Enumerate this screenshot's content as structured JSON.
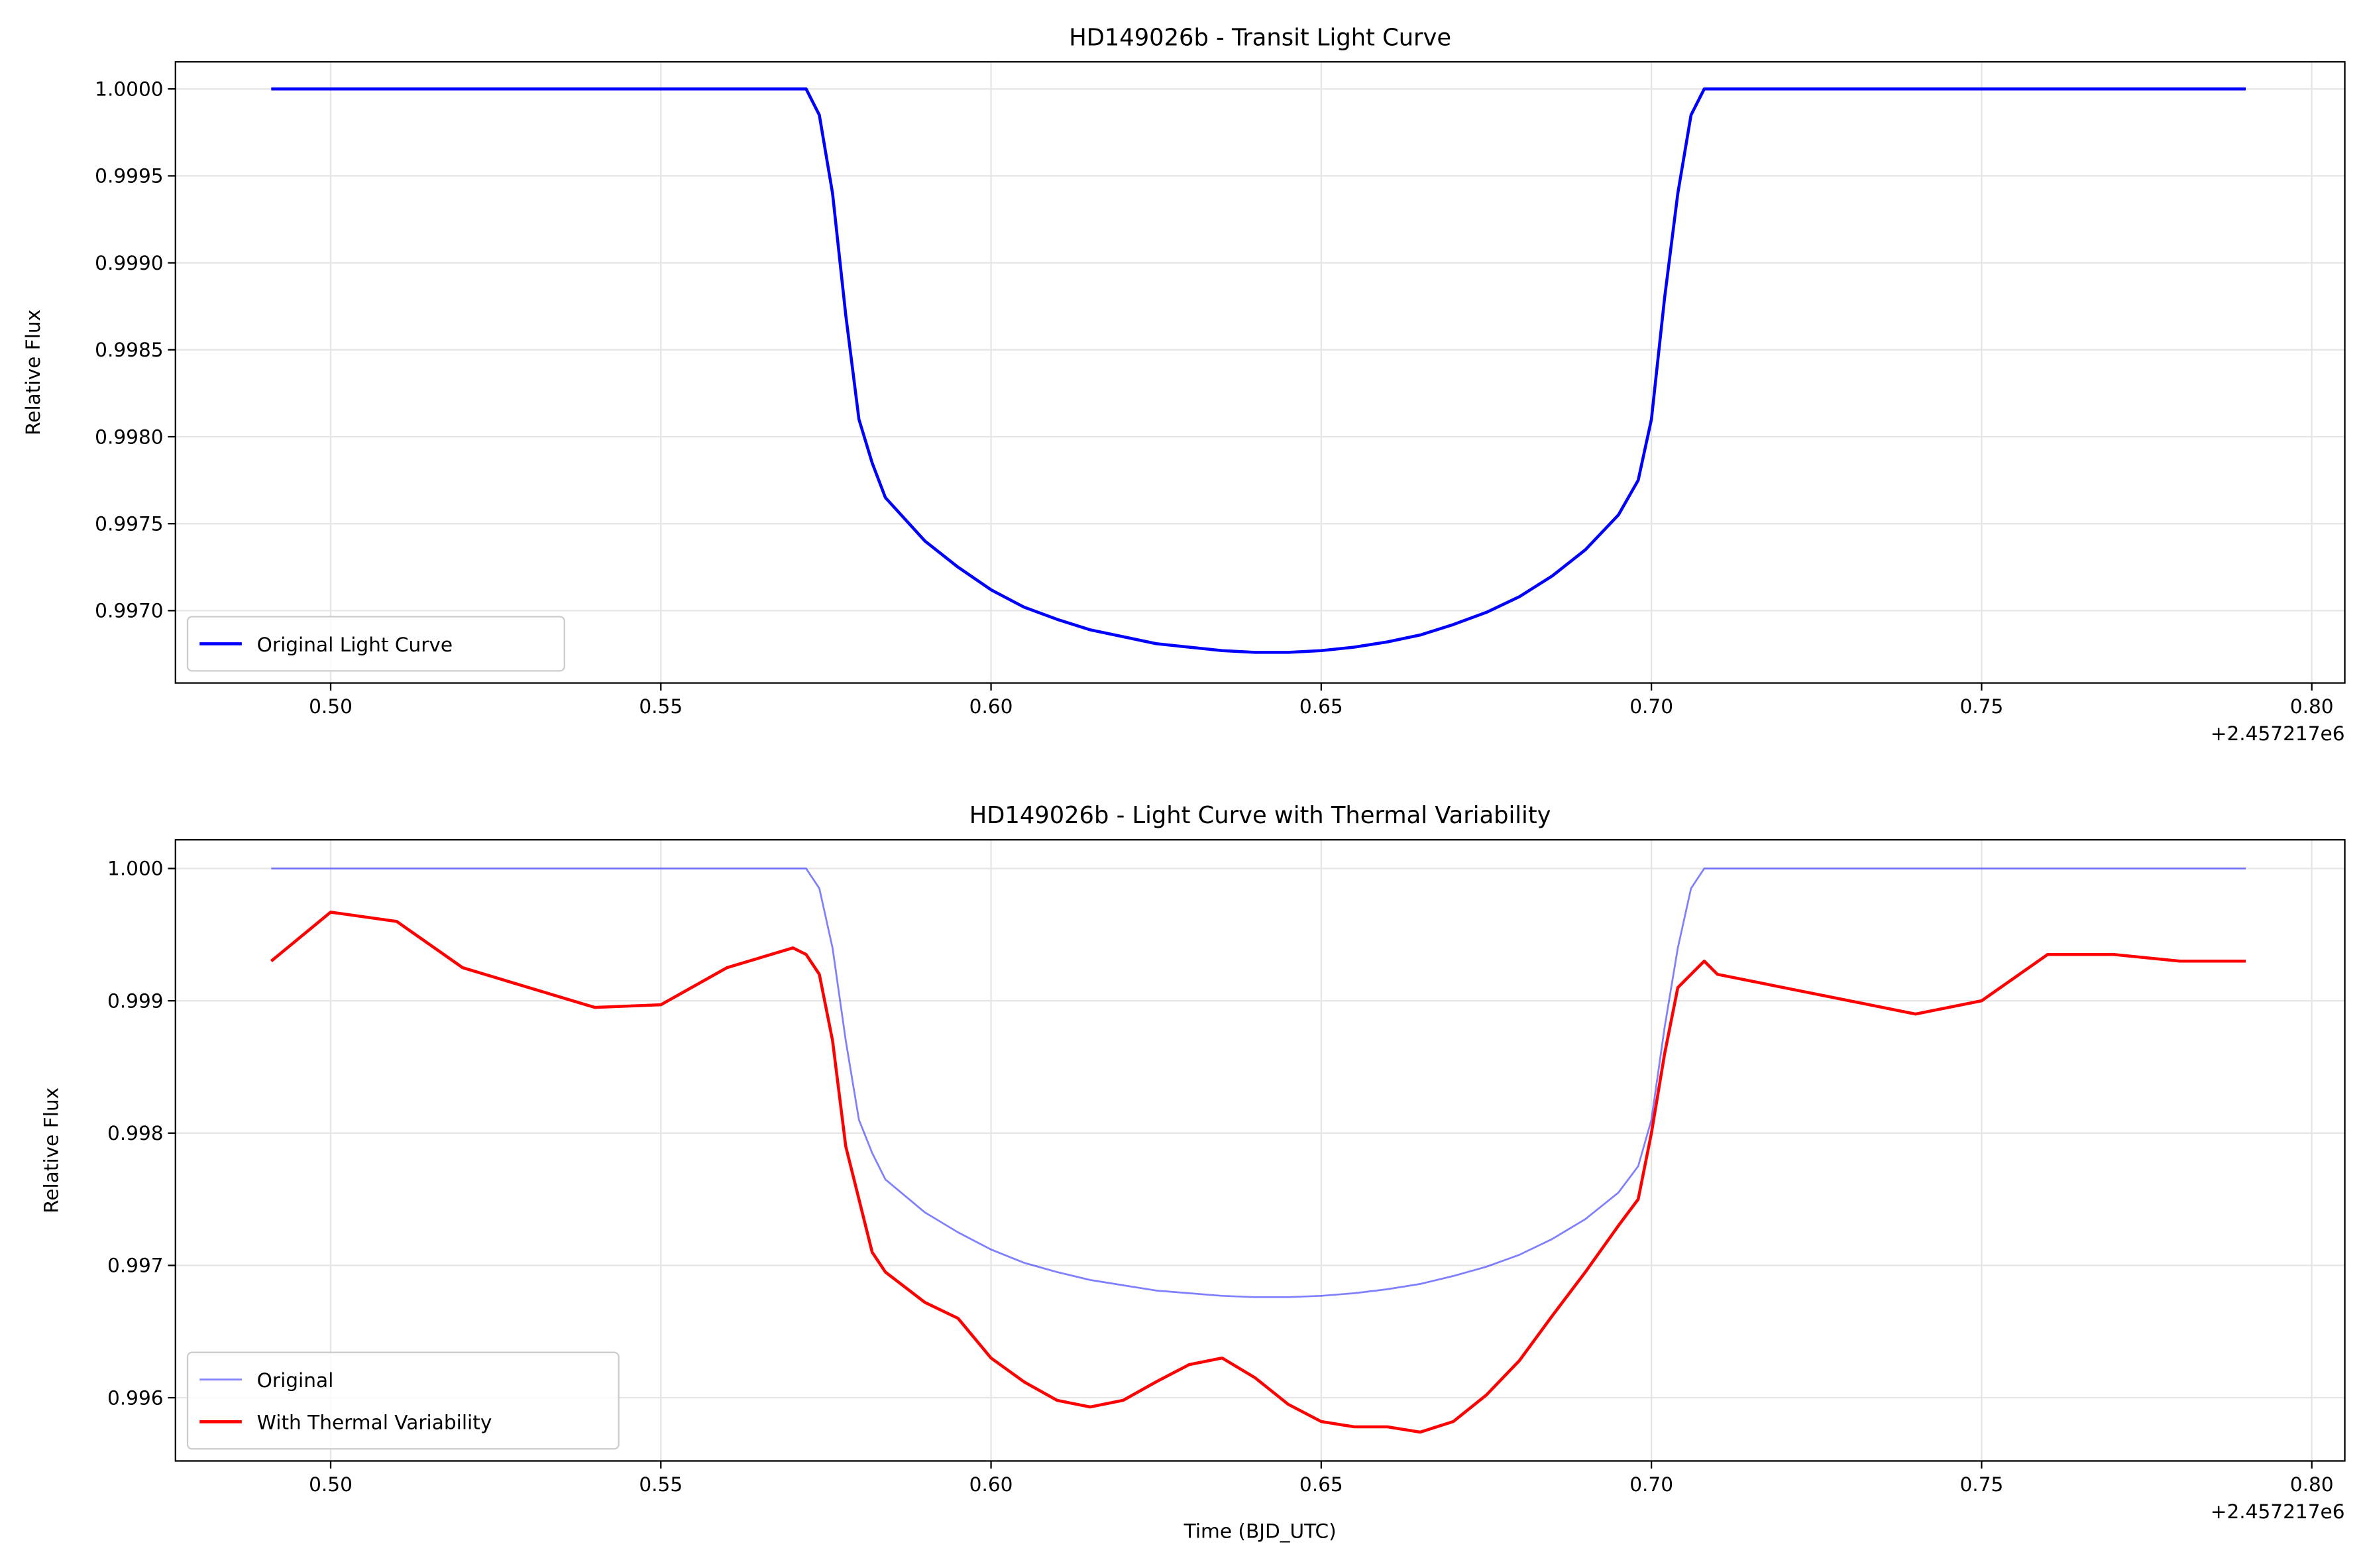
{
  "chart_data": [
    {
      "type": "line",
      "title": "HD149026b - Transit Light Curve",
      "y_label": "Relative Flux",
      "x_offset_label": "+2.457217e6",
      "x": [
        0.491,
        0.5,
        0.51,
        0.52,
        0.53,
        0.54,
        0.55,
        0.56,
        0.57,
        0.572,
        0.574,
        0.576,
        0.578,
        0.58,
        0.582,
        0.584,
        0.59,
        0.595,
        0.6,
        0.605,
        0.61,
        0.615,
        0.62,
        0.625,
        0.63,
        0.635,
        0.64,
        0.645,
        0.65,
        0.655,
        0.66,
        0.665,
        0.67,
        0.675,
        0.68,
        0.685,
        0.69,
        0.695,
        0.698,
        0.7,
        0.702,
        0.704,
        0.706,
        0.708,
        0.71,
        0.72,
        0.73,
        0.74,
        0.75,
        0.76,
        0.77,
        0.78,
        0.79
      ],
      "series": [
        {
          "name": "Original Light Curve",
          "color": "#0000ff",
          "opacity": 1,
          "width": 2,
          "values": [
            1,
            1,
            1,
            1,
            1,
            1,
            1,
            1,
            1,
            1,
            0.99985,
            0.9994,
            0.9987,
            0.9981,
            0.99785,
            0.99765,
            0.9974,
            0.99725,
            0.99712,
            0.99702,
            0.99695,
            0.99689,
            0.99685,
            0.99681,
            0.99679,
            0.99677,
            0.99676,
            0.99676,
            0.99677,
            0.99679,
            0.99682,
            0.99686,
            0.99692,
            0.99699,
            0.99708,
            0.9972,
            0.99735,
            0.99755,
            0.99775,
            0.9981,
            0.9988,
            0.9994,
            0.99985,
            1,
            1,
            1,
            1,
            1,
            1,
            1,
            1,
            1,
            1
          ]
        }
      ],
      "xlim": [
        0.4765,
        0.805
      ],
      "ylim": [
        0.996584,
        1.000156
      ],
      "xticks": [
        {
          "value": 0.5,
          "label": "0.50"
        },
        {
          "value": 0.55,
          "label": "0.55"
        },
        {
          "value": 0.6,
          "label": "0.60"
        },
        {
          "value": 0.65,
          "label": "0.65"
        },
        {
          "value": 0.7,
          "label": "0.70"
        },
        {
          "value": 0.75,
          "label": "0.75"
        },
        {
          "value": 0.8,
          "label": "0.80"
        }
      ],
      "yticks": [
        {
          "value": 0.997,
          "label": "0.9970"
        },
        {
          "value": 0.9975,
          "label": "0.9975"
        },
        {
          "value": 0.998,
          "label": "0.9980"
        },
        {
          "value": 0.9985,
          "label": "0.9985"
        },
        {
          "value": 0.999,
          "label": "0.9990"
        },
        {
          "value": 0.9995,
          "label": "0.9995"
        },
        {
          "value": 1,
          "label": "1.0000"
        }
      ],
      "grid": true,
      "legend": "lower left"
    },
    {
      "type": "line",
      "title": "HD149026b - Light Curve with Thermal Variability",
      "x_label": "Time (BJD_UTC)",
      "y_label": "Relative Flux",
      "x_offset_label": "+2.457217e6",
      "x": [
        0.491,
        0.5,
        0.51,
        0.52,
        0.53,
        0.54,
        0.55,
        0.56,
        0.57,
        0.572,
        0.574,
        0.576,
        0.578,
        0.58,
        0.582,
        0.584,
        0.59,
        0.595,
        0.6,
        0.605,
        0.61,
        0.615,
        0.62,
        0.625,
        0.63,
        0.635,
        0.64,
        0.645,
        0.65,
        0.655,
        0.66,
        0.665,
        0.67,
        0.675,
        0.68,
        0.685,
        0.69,
        0.695,
        0.698,
        0.7,
        0.702,
        0.704,
        0.706,
        0.708,
        0.71,
        0.72,
        0.73,
        0.74,
        0.75,
        0.76,
        0.77,
        0.78,
        0.79
      ],
      "series": [
        {
          "name": "Original",
          "color": "#0000ff",
          "opacity": 0.5,
          "width": 1.2,
          "values": [
            1,
            1,
            1,
            1,
            1,
            1,
            1,
            1,
            1,
            1,
            0.99985,
            0.9994,
            0.9987,
            0.9981,
            0.99785,
            0.99765,
            0.9974,
            0.99725,
            0.99712,
            0.99702,
            0.99695,
            0.99689,
            0.99685,
            0.99681,
            0.99679,
            0.99677,
            0.99676,
            0.99676,
            0.99677,
            0.99679,
            0.99682,
            0.99686,
            0.99692,
            0.99699,
            0.99708,
            0.9972,
            0.99735,
            0.99755,
            0.99775,
            0.9981,
            0.9988,
            0.9994,
            0.99985,
            1,
            1,
            1,
            1,
            1,
            1,
            1,
            1,
            1,
            1
          ]
        },
        {
          "name": "With Thermal Variability",
          "color": "#ff0000",
          "opacity": 1,
          "width": 2,
          "values": [
            0.9993,
            0.99967,
            0.9996,
            0.99925,
            0.9991,
            0.99895,
            0.99897,
            0.99925,
            0.9994,
            0.99935,
            0.9992,
            0.9987,
            0.9979,
            0.9975,
            0.9971,
            0.99695,
            0.99672,
            0.9966,
            0.9963,
            0.99612,
            0.99598,
            0.99593,
            0.99598,
            0.99612,
            0.99625,
            0.9963,
            0.99615,
            0.99595,
            0.99582,
            0.99578,
            0.99578,
            0.99574,
            0.99582,
            0.99602,
            0.99628,
            0.99662,
            0.99695,
            0.9973,
            0.9975,
            0.998,
            0.9986,
            0.9991,
            0.9992,
            0.9993,
            0.9992,
            0.9991,
            0.999,
            0.9989,
            0.999,
            0.99935,
            0.99935,
            0.9993,
            0.9993
          ]
        }
      ],
      "xlim": [
        0.4765,
        0.805
      ],
      "ylim": [
        0.995522,
        1.000217
      ],
      "xticks": [
        {
          "value": 0.5,
          "label": "0.50"
        },
        {
          "value": 0.55,
          "label": "0.55"
        },
        {
          "value": 0.6,
          "label": "0.60"
        },
        {
          "value": 0.65,
          "label": "0.65"
        },
        {
          "value": 0.7,
          "label": "0.70"
        },
        {
          "value": 0.75,
          "label": "0.75"
        },
        {
          "value": 0.8,
          "label": "0.80"
        }
      ],
      "yticks": [
        {
          "value": 0.996,
          "label": "0.996"
        },
        {
          "value": 0.997,
          "label": "0.997"
        },
        {
          "value": 0.998,
          "label": "0.998"
        },
        {
          "value": 0.999,
          "label": "0.999"
        },
        {
          "value": 1,
          "label": "1.000"
        }
      ],
      "grid": true,
      "legend": "lower left"
    }
  ]
}
